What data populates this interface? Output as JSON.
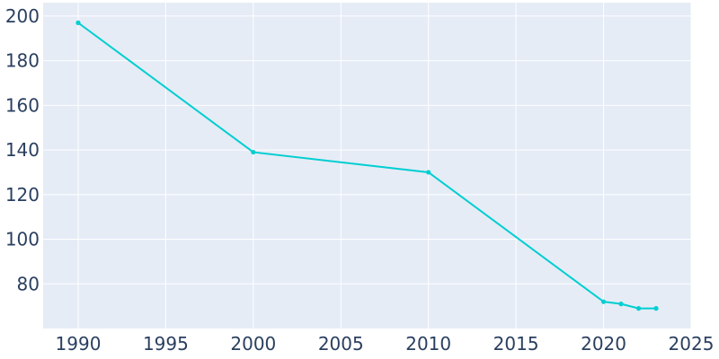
{
  "chart_data": {
    "type": "line",
    "title": "",
    "xlabel": "",
    "ylabel": "",
    "x": [
      1990,
      2000,
      2010,
      2020,
      2021,
      2022,
      2023
    ],
    "series": [
      {
        "values": [
          197,
          139,
          130,
          72,
          71,
          69,
          69
        ]
      }
    ],
    "xlim": [
      1988,
      2025
    ],
    "ylim": [
      60,
      206
    ],
    "xticks": [
      1990,
      1995,
      2000,
      2005,
      2010,
      2015,
      2020,
      2025
    ],
    "yticks": [
      80,
      100,
      120,
      140,
      160,
      180,
      200
    ],
    "grid": true,
    "legend": "none",
    "colors": {
      "plot_bg": "#e5ecf6",
      "line": "#00ced1",
      "tick_text": "#2a3f5f",
      "grid": "#ffffff"
    }
  }
}
